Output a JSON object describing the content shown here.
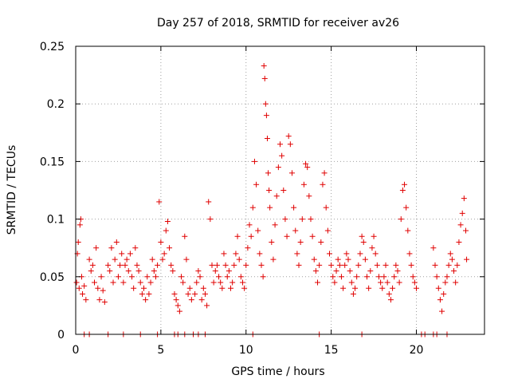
{
  "chart_data": {
    "type": "scatter",
    "title": "Day 257 of 2018, SRMTID for receiver av26",
    "xlabel": "GPS time / hours",
    "ylabel": "SRMTID / TECUs",
    "xlim": [
      0,
      24
    ],
    "ylim": [
      0,
      0.25
    ],
    "xticks": [
      0,
      5,
      10,
      15,
      20
    ],
    "xtick_labels": [
      "0",
      "5",
      "10",
      "15",
      "20"
    ],
    "yticks": [
      0,
      0.05,
      0.1,
      0.15,
      0.2,
      0.25
    ],
    "ytick_labels": [
      "0",
      "0.05",
      "0.1",
      "0.15",
      "0.2",
      "0.25"
    ],
    "grid": true,
    "marker": "+",
    "marker_color": "#e00000",
    "series": [
      {
        "name": "SRMTID av26",
        "points": [
          [
            0.05,
            0.045
          ],
          [
            0.1,
            0.07
          ],
          [
            0.15,
            0.08
          ],
          [
            0.2,
            0.04
          ],
          [
            0.25,
            0.095
          ],
          [
            0.3,
            0.1
          ],
          [
            0.35,
            0.05
          ],
          [
            0.4,
            0.035
          ],
          [
            0.5,
            0.042
          ],
          [
            0.6,
            0.03
          ],
          [
            0.8,
            0.065
          ],
          [
            0.9,
            0.055
          ],
          [
            1.0,
            0.06
          ],
          [
            1.1,
            0.045
          ],
          [
            1.2,
            0.075
          ],
          [
            1.3,
            0.04
          ],
          [
            1.4,
            0.03
          ],
          [
            1.5,
            0.05
          ],
          [
            1.6,
            0.038
          ],
          [
            1.7,
            0.028
          ],
          [
            1.9,
            0.06
          ],
          [
            2.0,
            0.055
          ],
          [
            2.1,
            0.075
          ],
          [
            2.2,
            0.045
          ],
          [
            2.3,
            0.065
          ],
          [
            2.4,
            0.08
          ],
          [
            2.5,
            0.05
          ],
          [
            2.6,
            0.06
          ],
          [
            2.7,
            0.07
          ],
          [
            2.8,
            0.045
          ],
          [
            2.9,
            0.06
          ],
          [
            3.0,
            0.065
          ],
          [
            3.1,
            0.055
          ],
          [
            3.2,
            0.07
          ],
          [
            3.3,
            0.05
          ],
          [
            3.4,
            0.04
          ],
          [
            3.5,
            0.075
          ],
          [
            3.6,
            0.06
          ],
          [
            3.7,
            0.055
          ],
          [
            3.8,
            0.045
          ],
          [
            3.9,
            0.035
          ],
          [
            4.0,
            0.04
          ],
          [
            4.1,
            0.03
          ],
          [
            4.2,
            0.05
          ],
          [
            4.3,
            0.035
          ],
          [
            4.4,
            0.045
          ],
          [
            4.5,
            0.065
          ],
          [
            4.6,
            0.055
          ],
          [
            4.7,
            0.05
          ],
          [
            4.8,
            0.06
          ],
          [
            4.9,
            0.115
          ],
          [
            5.0,
            0.08
          ],
          [
            5.1,
            0.065
          ],
          [
            5.2,
            0.07
          ],
          [
            5.3,
            0.09
          ],
          [
            5.4,
            0.098
          ],
          [
            5.5,
            0.075
          ],
          [
            5.6,
            0.06
          ],
          [
            5.7,
            0.055
          ],
          [
            5.8,
            0.035
          ],
          [
            5.9,
            0.03
          ],
          [
            6.0,
            0.025
          ],
          [
            6.1,
            0.02
          ],
          [
            6.2,
            0.05
          ],
          [
            6.3,
            0.045
          ],
          [
            6.4,
            0.085
          ],
          [
            6.5,
            0.065
          ],
          [
            6.6,
            0.035
          ],
          [
            6.7,
            0.04
          ],
          [
            6.8,
            0.03
          ],
          [
            7.0,
            0.035
          ],
          [
            7.1,
            0.045
          ],
          [
            7.2,
            0.055
          ],
          [
            7.3,
            0.05
          ],
          [
            7.4,
            0.03
          ],
          [
            7.5,
            0.04
          ],
          [
            7.6,
            0.035
          ],
          [
            7.7,
            0.025
          ],
          [
            7.8,
            0.115
          ],
          [
            7.9,
            0.1
          ],
          [
            8.0,
            0.06
          ],
          [
            8.1,
            0.045
          ],
          [
            8.2,
            0.055
          ],
          [
            8.3,
            0.06
          ],
          [
            8.4,
            0.05
          ],
          [
            8.5,
            0.045
          ],
          [
            8.6,
            0.04
          ],
          [
            8.7,
            0.07
          ],
          [
            8.8,
            0.06
          ],
          [
            8.9,
            0.05
          ],
          [
            9.0,
            0.055
          ],
          [
            9.1,
            0.04
          ],
          [
            9.2,
            0.045
          ],
          [
            9.3,
            0.06
          ],
          [
            9.4,
            0.07
          ],
          [
            9.5,
            0.085
          ],
          [
            9.6,
            0.065
          ],
          [
            9.7,
            0.05
          ],
          [
            9.8,
            0.045
          ],
          [
            9.9,
            0.04
          ],
          [
            10.0,
            0.06
          ],
          [
            10.1,
            0.075
          ],
          [
            10.2,
            0.095
          ],
          [
            10.3,
            0.085
          ],
          [
            10.4,
            0.11
          ],
          [
            10.5,
            0.15
          ],
          [
            10.6,
            0.13
          ],
          [
            10.7,
            0.09
          ],
          [
            10.8,
            0.07
          ],
          [
            10.9,
            0.06
          ],
          [
            11.0,
            0.05
          ],
          [
            11.05,
            0.233
          ],
          [
            11.1,
            0.222
          ],
          [
            11.15,
            0.2
          ],
          [
            11.2,
            0.19
          ],
          [
            11.25,
            0.17
          ],
          [
            11.3,
            0.14
          ],
          [
            11.35,
            0.125
          ],
          [
            11.4,
            0.11
          ],
          [
            11.5,
            0.08
          ],
          [
            11.6,
            0.065
          ],
          [
            11.7,
            0.095
          ],
          [
            11.8,
            0.12
          ],
          [
            11.9,
            0.145
          ],
          [
            12.0,
            0.165
          ],
          [
            12.1,
            0.155
          ],
          [
            12.2,
            0.125
          ],
          [
            12.3,
            0.1
          ],
          [
            12.4,
            0.085
          ],
          [
            12.5,
            0.172
          ],
          [
            12.6,
            0.165
          ],
          [
            12.7,
            0.14
          ],
          [
            12.8,
            0.11
          ],
          [
            12.9,
            0.09
          ],
          [
            13.0,
            0.07
          ],
          [
            13.1,
            0.06
          ],
          [
            13.2,
            0.08
          ],
          [
            13.3,
            0.1
          ],
          [
            13.4,
            0.13
          ],
          [
            13.5,
            0.148
          ],
          [
            13.6,
            0.145
          ],
          [
            13.7,
            0.12
          ],
          [
            13.8,
            0.1
          ],
          [
            13.9,
            0.085
          ],
          [
            14.0,
            0.065
          ],
          [
            14.1,
            0.055
          ],
          [
            14.2,
            0.045
          ],
          [
            14.3,
            0.06
          ],
          [
            14.4,
            0.08
          ],
          [
            14.5,
            0.13
          ],
          [
            14.6,
            0.14
          ],
          [
            14.7,
            0.11
          ],
          [
            14.8,
            0.09
          ],
          [
            14.9,
            0.07
          ],
          [
            15.0,
            0.06
          ],
          [
            15.1,
            0.05
          ],
          [
            15.2,
            0.045
          ],
          [
            15.3,
            0.055
          ],
          [
            15.4,
            0.065
          ],
          [
            15.5,
            0.06
          ],
          [
            15.6,
            0.05
          ],
          [
            15.7,
            0.04
          ],
          [
            15.8,
            0.06
          ],
          [
            15.9,
            0.07
          ],
          [
            16.0,
            0.065
          ],
          [
            16.1,
            0.055
          ],
          [
            16.2,
            0.045
          ],
          [
            16.3,
            0.035
          ],
          [
            16.4,
            0.04
          ],
          [
            16.5,
            0.05
          ],
          [
            16.6,
            0.06
          ],
          [
            16.7,
            0.07
          ],
          [
            16.8,
            0.085
          ],
          [
            16.9,
            0.08
          ],
          [
            17.0,
            0.065
          ],
          [
            17.1,
            0.05
          ],
          [
            17.2,
            0.04
          ],
          [
            17.3,
            0.055
          ],
          [
            17.4,
            0.075
          ],
          [
            17.5,
            0.085
          ],
          [
            17.6,
            0.07
          ],
          [
            17.7,
            0.06
          ],
          [
            17.8,
            0.05
          ],
          [
            17.9,
            0.045
          ],
          [
            18.0,
            0.04
          ],
          [
            18.1,
            0.05
          ],
          [
            18.2,
            0.06
          ],
          [
            18.3,
            0.045
          ],
          [
            18.4,
            0.035
          ],
          [
            18.5,
            0.03
          ],
          [
            18.6,
            0.04
          ],
          [
            18.7,
            0.05
          ],
          [
            18.8,
            0.06
          ],
          [
            18.9,
            0.055
          ],
          [
            19.0,
            0.045
          ],
          [
            19.1,
            0.1
          ],
          [
            19.2,
            0.125
          ],
          [
            19.3,
            0.13
          ],
          [
            19.4,
            0.11
          ],
          [
            19.5,
            0.09
          ],
          [
            19.6,
            0.07
          ],
          [
            19.7,
            0.06
          ],
          [
            19.8,
            0.05
          ],
          [
            19.9,
            0.045
          ],
          [
            20.0,
            0.04
          ],
          [
            21.0,
            0.075
          ],
          [
            21.1,
            0.06
          ],
          [
            21.2,
            0.05
          ],
          [
            21.3,
            0.04
          ],
          [
            21.4,
            0.03
          ],
          [
            21.5,
            0.02
          ],
          [
            21.6,
            0.035
          ],
          [
            21.7,
            0.045
          ],
          [
            21.8,
            0.05
          ],
          [
            21.9,
            0.06
          ],
          [
            22.0,
            0.07
          ],
          [
            22.1,
            0.065
          ],
          [
            22.2,
            0.055
          ],
          [
            22.3,
            0.045
          ],
          [
            22.4,
            0.06
          ],
          [
            22.5,
            0.08
          ],
          [
            22.6,
            0.095
          ],
          [
            22.7,
            0.105
          ],
          [
            22.8,
            0.118
          ],
          [
            22.9,
            0.09
          ],
          [
            22.95,
            0.065
          ]
        ]
      }
    ],
    "zero_markers_x": [
      0.5,
      0.8,
      1.9,
      2.8,
      3.8,
      4.8,
      5.8,
      6.0,
      6.4,
      6.9,
      7.2,
      7.6,
      10.4,
      14.3,
      16.8,
      20.3,
      20.5,
      21.0,
      21.2,
      21.8
    ]
  }
}
